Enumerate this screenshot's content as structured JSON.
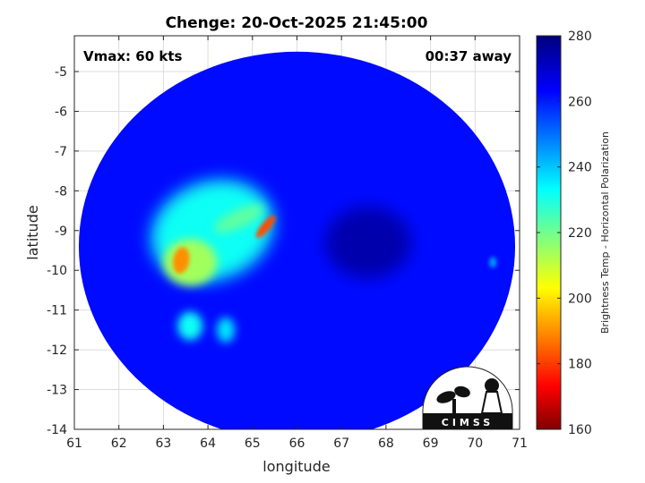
{
  "chart_data": {
    "type": "heatmap",
    "title": "Chenge: 20-Oct-2025 21:45:00",
    "xlabel": "longitude",
    "ylabel": "latitude",
    "xlim": [
      61,
      71
    ],
    "ylim": [
      -14,
      -4.1
    ],
    "x_ticks": [
      "61",
      "62",
      "63",
      "64",
      "65",
      "66",
      "67",
      "68",
      "69",
      "70",
      "71"
    ],
    "y_ticks": [
      "-5",
      "-6",
      "-7",
      "-8",
      "-9",
      "-10",
      "-11",
      "-12",
      "-13",
      "-14"
    ],
    "grid": true,
    "annotations": {
      "vmax": "Vmax: 60 kts",
      "time_away": "00:37 away"
    },
    "colorbar": {
      "label": "Brightness Temp - Horizontal Polarization",
      "range": [
        160,
        280
      ],
      "ticks": [
        "280",
        "260",
        "240",
        "220",
        "200",
        "180",
        "160"
      ],
      "colormap": "jet"
    },
    "swath": {
      "center_lon": 66.0,
      "center_lat": -9.4,
      "radius_deg": 4.9,
      "background_value": 262
    },
    "eye": {
      "lon": 67.6,
      "lat": -9.3,
      "value": 274
    },
    "features": [
      {
        "label": "",
        "lon": 64.1,
        "lat": -9.0,
        "value": 232
      },
      {
        "label": "",
        "lon": 63.6,
        "lat": -9.8,
        "value": 214
      },
      {
        "label": "",
        "lon": 63.4,
        "lat": -9.75,
        "value": 190
      },
      {
        "label": "",
        "lon": 65.3,
        "lat": -8.9,
        "value": 182
      },
      {
        "label": "",
        "lon": 64.7,
        "lat": -8.7,
        "value": 222
      },
      {
        "label": "",
        "lon": 63.6,
        "lat": -11.4,
        "value": 232
      },
      {
        "label": "",
        "lon": 64.4,
        "lat": -11.5,
        "value": 236
      },
      {
        "label": "",
        "lon": 70.4,
        "lat": -9.8,
        "value": 244
      }
    ]
  },
  "logo": {
    "text": "CIMSS"
  }
}
